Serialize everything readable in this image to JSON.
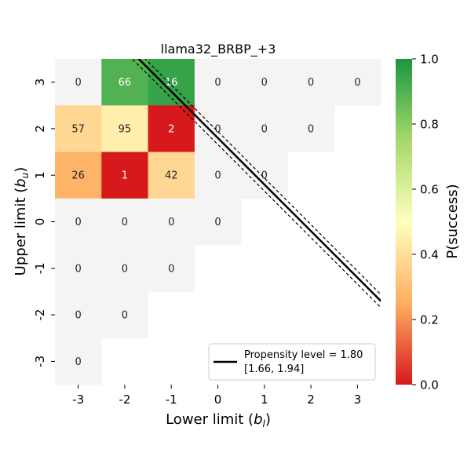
{
  "chart_data": {
    "type": "heatmap",
    "title": "llama32_BRBP_+3",
    "xlabel": "Lower limit (b_l)",
    "ylabel": "Upper limit (b_u)",
    "x_categories": [
      "-3",
      "-2",
      "-1",
      "0",
      "1",
      "2",
      "3"
    ],
    "y_categories": [
      "3",
      "2",
      "1",
      "0",
      "-1",
      "-2",
      "-3"
    ],
    "cells": [
      {
        "x": "-3",
        "y": "3",
        "label": "0",
        "p": null
      },
      {
        "x": "-2",
        "y": "3",
        "label": "66",
        "p": 0.9
      },
      {
        "x": "-1",
        "y": "3",
        "label": "16",
        "p": 0.95
      },
      {
        "x": "0",
        "y": "3",
        "label": "0",
        "p": null
      },
      {
        "x": "1",
        "y": "3",
        "label": "0",
        "p": null
      },
      {
        "x": "2",
        "y": "3",
        "label": "0",
        "p": null
      },
      {
        "x": "3",
        "y": "3",
        "label": "0",
        "p": null
      },
      {
        "x": "-3",
        "y": "2",
        "label": "57",
        "p": 0.38
      },
      {
        "x": "-2",
        "y": "2",
        "label": "95",
        "p": 0.45
      },
      {
        "x": "-1",
        "y": "2",
        "label": "2",
        "p": 0.0
      },
      {
        "x": "0",
        "y": "2",
        "label": "0",
        "p": null
      },
      {
        "x": "1",
        "y": "2",
        "label": "0",
        "p": null
      },
      {
        "x": "2",
        "y": "2",
        "label": "0",
        "p": null
      },
      {
        "x": "-3",
        "y": "1",
        "label": "26",
        "p": 0.27
      },
      {
        "x": "-2",
        "y": "1",
        "label": "1",
        "p": 0.0
      },
      {
        "x": "-1",
        "y": "1",
        "label": "42",
        "p": 0.38
      },
      {
        "x": "0",
        "y": "1",
        "label": "0",
        "p": null
      },
      {
        "x": "1",
        "y": "1",
        "label": "0",
        "p": null
      },
      {
        "x": "-3",
        "y": "0",
        "label": "0",
        "p": null
      },
      {
        "x": "-2",
        "y": "0",
        "label": "0",
        "p": null
      },
      {
        "x": "-1",
        "y": "0",
        "label": "0",
        "p": null
      },
      {
        "x": "0",
        "y": "0",
        "label": "0",
        "p": null
      },
      {
        "x": "-3",
        "y": "-1",
        "label": "0",
        "p": null
      },
      {
        "x": "-2",
        "y": "-1",
        "label": "0",
        "p": null
      },
      {
        "x": "-1",
        "y": "-1",
        "label": "0",
        "p": null
      },
      {
        "x": "-3",
        "y": "-2",
        "label": "0",
        "p": null
      },
      {
        "x": "-2",
        "y": "-2",
        "label": "0",
        "p": null
      },
      {
        "x": "-3",
        "y": "-3",
        "label": "0",
        "p": null
      }
    ],
    "propensity_line": {
      "level": 1.8,
      "ci": [
        1.66,
        1.94
      ],
      "legend_line1": "Propensity level = 1.80",
      "legend_line2": "[1.66, 1.94]",
      "legend_placement": "lower-right"
    },
    "colorbar": {
      "label": "P(success)",
      "range": [
        0.0,
        1.0
      ],
      "ticks": [
        "0.0",
        "0.2",
        "0.4",
        "0.6",
        "0.8",
        "1.0"
      ],
      "colors": [
        "#d7191c",
        "#fdae61",
        "#ffffbf",
        "#a6d96a",
        "#1a9641"
      ]
    },
    "empty_cell_color": "#f4f4f4"
  }
}
